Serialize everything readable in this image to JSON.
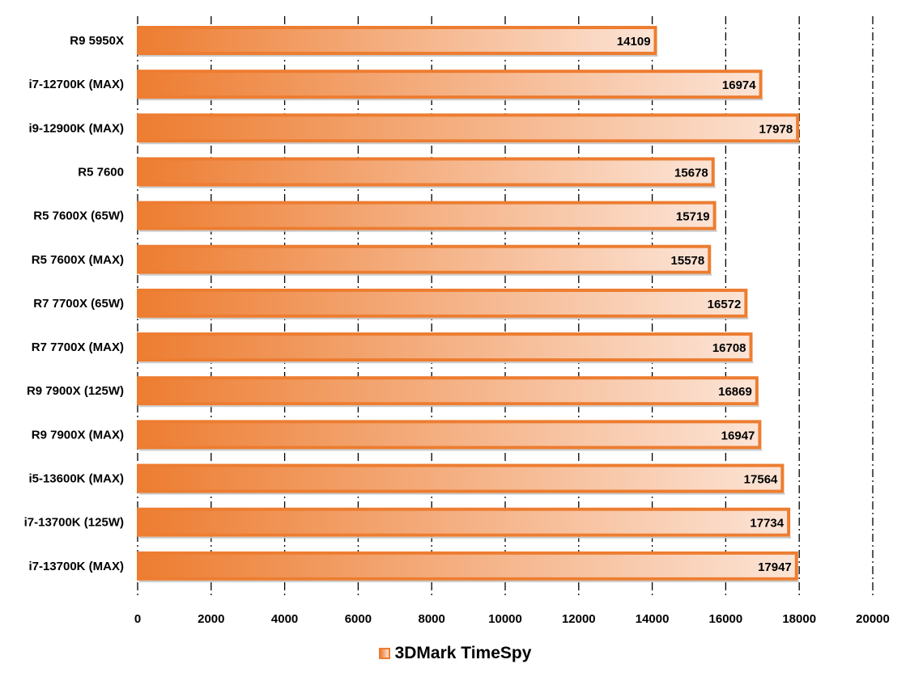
{
  "colors": {
    "bar": "#ed7d31",
    "bar_light": "#fce4d6",
    "gridline": "#000000"
  },
  "chart_data": {
    "type": "bar",
    "orientation": "horizontal",
    "categories": [
      "R9 5950X",
      "i7-12700K (MAX)",
      "i9-12900K (MAX)",
      "R5 7600",
      "R5 7600X (65W)",
      "R5 7600X (MAX)",
      "R7 7700X (65W)",
      "R7 7700X (MAX)",
      "R9 7900X (125W)",
      "R9 7900X (MAX)",
      "i5-13600K (MAX)",
      "i7-13700K (125W)",
      "i7-13700K (MAX)"
    ],
    "series": [
      {
        "name": "3DMark TimeSpy",
        "values": [
          14109,
          16974,
          17978,
          15678,
          15719,
          15578,
          16572,
          16708,
          16869,
          16947,
          17564,
          17734,
          17947
        ]
      }
    ],
    "xlim": [
      0,
      20000
    ],
    "xticks": [
      0,
      2000,
      4000,
      6000,
      8000,
      10000,
      12000,
      14000,
      16000,
      18000,
      20000
    ],
    "grid": "vertical dash-dot",
    "legend_position": "bottom-center",
    "data_labels": true
  }
}
